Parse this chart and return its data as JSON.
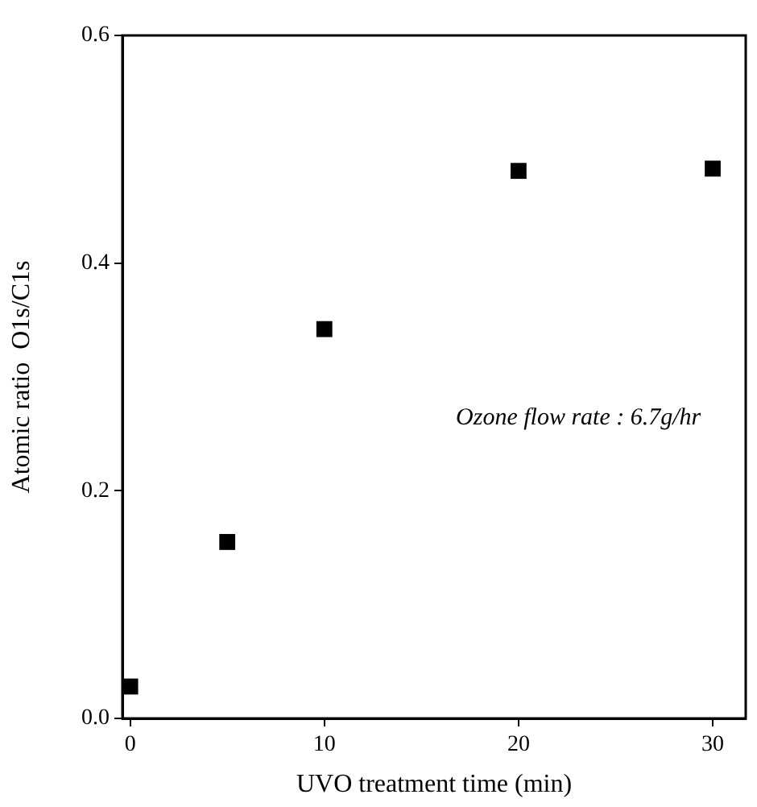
{
  "chart_data": {
    "type": "scatter",
    "x": [
      0,
      5,
      10,
      20,
      30
    ],
    "values": [
      0.028,
      0.155,
      0.342,
      0.481,
      0.483
    ],
    "color": "#000000",
    "marker": "square",
    "xlabel": "UVO treatment time (min)",
    "ylabel": "Atomic ratio  O1s/C1s",
    "xlim": [
      -0.4,
      31.7
    ],
    "xticks": [
      0,
      10,
      20,
      30
    ],
    "ylim": [
      0,
      0.6
    ],
    "yticks": [
      {
        "value": 0,
        "label": "0.0"
      },
      0.2,
      0.4,
      0.6
    ],
    "annotations": [
      "Ozone flow rate : 6.7g/hr"
    ],
    "grid": false,
    "legend": false
  }
}
